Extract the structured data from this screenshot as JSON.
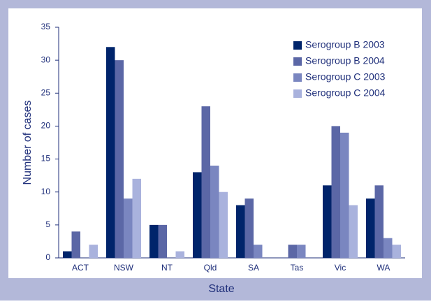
{
  "chart_data": {
    "type": "bar",
    "x_label": "State",
    "y_label": "Number of cases",
    "categories": [
      "ACT",
      "NSW",
      "NT",
      "Qld",
      "SA",
      "Tas",
      "Vic",
      "WA"
    ],
    "series": [
      {
        "name": "Serogroup B 2003",
        "color": "#00246b",
        "values": [
          1,
          32,
          5,
          13,
          8,
          0,
          11,
          9
        ]
      },
      {
        "name": "Serogroup B 2004",
        "color": "#5b67a6",
        "values": [
          4,
          30,
          5,
          23,
          9,
          2,
          20,
          11
        ]
      },
      {
        "name": "Serogroup C 2003",
        "color": "#7a86c0",
        "values": [
          0,
          9,
          0,
          14,
          2,
          2,
          19,
          3
        ]
      },
      {
        "name": "Serogroup C 2004",
        "color": "#a9b2dd",
        "values": [
          2,
          12,
          1,
          10,
          0,
          0,
          8,
          2
        ]
      }
    ],
    "ylim": [
      0,
      35
    ],
    "yticks": [
      0,
      5,
      10,
      15,
      20,
      25,
      30,
      35
    ],
    "grid": false,
    "legend": "upper right"
  }
}
